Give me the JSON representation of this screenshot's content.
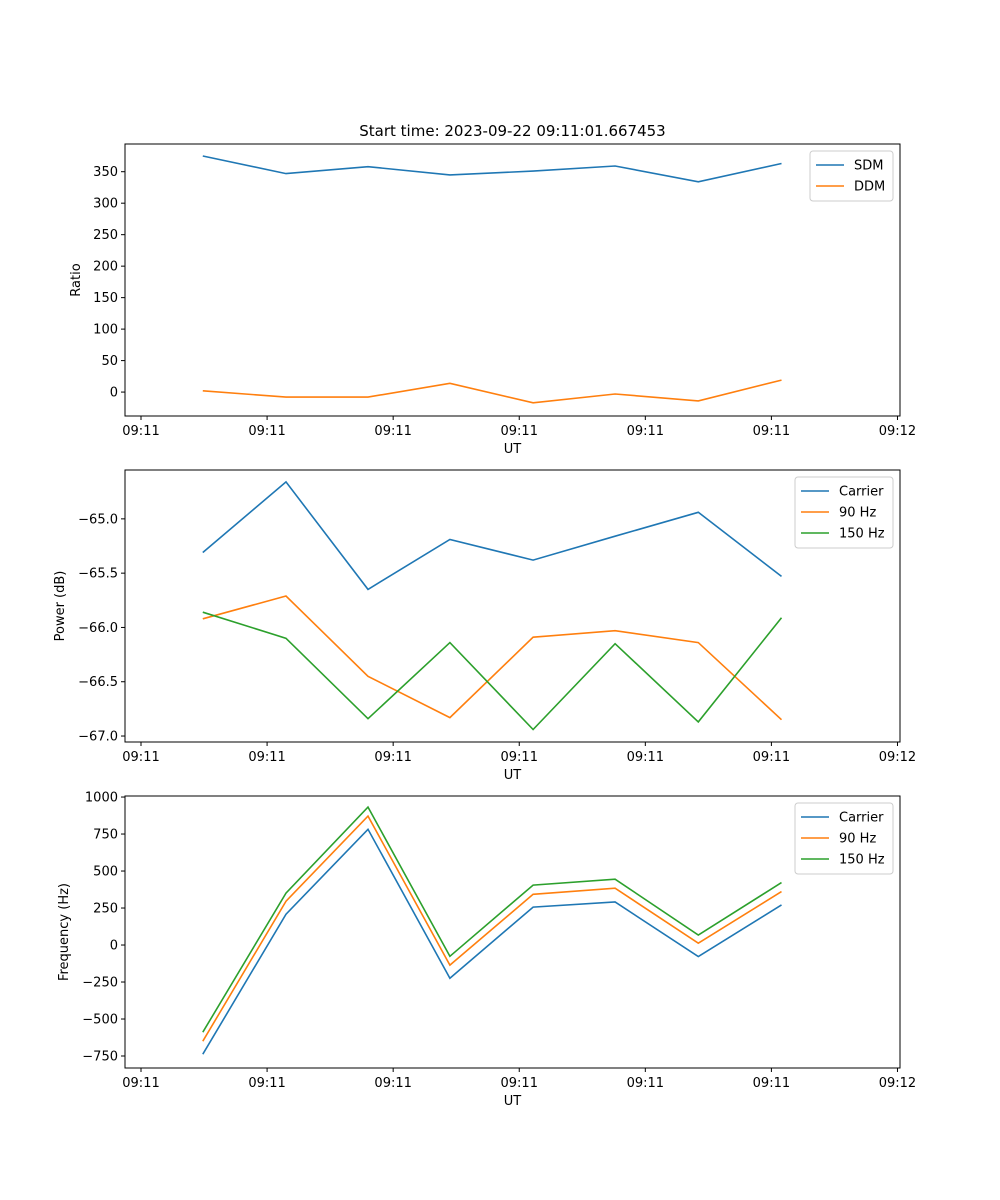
{
  "chart_data": [
    {
      "type": "line",
      "title": "Start time: 2023-09-22 09:11:01.667453",
      "xlabel": "UT",
      "ylabel": "Ratio",
      "x": [
        4.9,
        11.5,
        18.0,
        24.5,
        31.1,
        37.6,
        44.2,
        50.8
      ],
      "xlim": [
        -1.27,
        60.2
      ],
      "xticks": [
        0,
        10,
        20,
        30,
        40,
        50,
        60
      ],
      "xtick_labels": [
        "09:11",
        "09:11",
        "09:11",
        "09:11",
        "09:11",
        "09:11",
        "09:12"
      ],
      "ylim": [
        -38,
        394
      ],
      "yticks": [
        0,
        50,
        100,
        150,
        200,
        250,
        300,
        350
      ],
      "ytick_labels": [
        "0",
        "50",
        "100",
        "150",
        "200",
        "250",
        "300",
        "350"
      ],
      "legend": "top-right",
      "grid": false,
      "series": [
        {
          "name": "SDM",
          "color": "#1f77b4",
          "values": [
            375,
            347,
            358,
            345,
            351,
            359,
            334,
            363
          ]
        },
        {
          "name": "DDM",
          "color": "#ff7f0e",
          "values": [
            2,
            -8,
            -8,
            14,
            -17,
            -3,
            -14,
            19
          ]
        }
      ]
    },
    {
      "type": "line",
      "title": "",
      "xlabel": "UT",
      "ylabel": "Power (dB)",
      "x": [
        4.9,
        11.5,
        18.0,
        24.5,
        31.1,
        37.6,
        44.2,
        50.8
      ],
      "xlim": [
        -1.27,
        60.2
      ],
      "xticks": [
        0,
        10,
        20,
        30,
        40,
        50,
        60
      ],
      "xtick_labels": [
        "09:11",
        "09:11",
        "09:11",
        "09:11",
        "09:11",
        "09:11",
        "09:12"
      ],
      "ylim": [
        -67.055,
        -64.55
      ],
      "yticks": [
        -67.0,
        -66.5,
        -66.0,
        -65.5,
        -65.0
      ],
      "ytick_labels": [
        "−67.0",
        "−66.5",
        "−66.0",
        "−65.5",
        "−65.0"
      ],
      "legend": "top-right",
      "grid": false,
      "series": [
        {
          "name": "Carrier",
          "color": "#1f77b4",
          "values": [
            -65.31,
            -64.66,
            -65.65,
            -65.19,
            -65.38,
            -65.16,
            -64.94,
            -65.53
          ]
        },
        {
          "name": "90 Hz",
          "color": "#ff7f0e",
          "values": [
            -65.92,
            -65.71,
            -66.45,
            -66.83,
            -66.09,
            -66.03,
            -66.14,
            -66.85
          ]
        },
        {
          "name": "150 Hz",
          "color": "#2ca02c",
          "values": [
            -65.86,
            -66.1,
            -66.84,
            -66.14,
            -66.94,
            -66.15,
            -66.87,
            -65.91
          ]
        }
      ]
    },
    {
      "type": "line",
      "title": "",
      "xlabel": "UT",
      "ylabel": "Frequency (Hz)",
      "x": [
        4.9,
        11.5,
        18.0,
        24.5,
        31.1,
        37.6,
        44.2,
        50.8
      ],
      "xlim": [
        -1.27,
        60.2
      ],
      "xticks": [
        0,
        10,
        20,
        30,
        40,
        50,
        60
      ],
      "xtick_labels": [
        "09:11",
        "09:11",
        "09:11",
        "09:11",
        "09:11",
        "09:11",
        "09:12"
      ],
      "ylim": [
        -831,
        1007
      ],
      "yticks": [
        -750,
        -500,
        -250,
        0,
        250,
        500,
        750,
        1000
      ],
      "ytick_labels": [
        "−750",
        "−500",
        "−250",
        "0",
        "250",
        "500",
        "750",
        "1000"
      ],
      "legend": "top-right",
      "grid": false,
      "series": [
        {
          "name": "Carrier",
          "color": "#1f77b4",
          "values": [
            -738,
            208,
            782,
            -224,
            256,
            291,
            -78,
            271
          ]
        },
        {
          "name": "90 Hz",
          "color": "#ff7f0e",
          "values": [
            -650,
            296,
            871,
            -136,
            343,
            384,
            12,
            361
          ]
        },
        {
          "name": "150 Hz",
          "color": "#2ca02c",
          "values": [
            -589,
            351,
            932,
            -76,
            405,
            445,
            68,
            422
          ]
        }
      ]
    }
  ]
}
